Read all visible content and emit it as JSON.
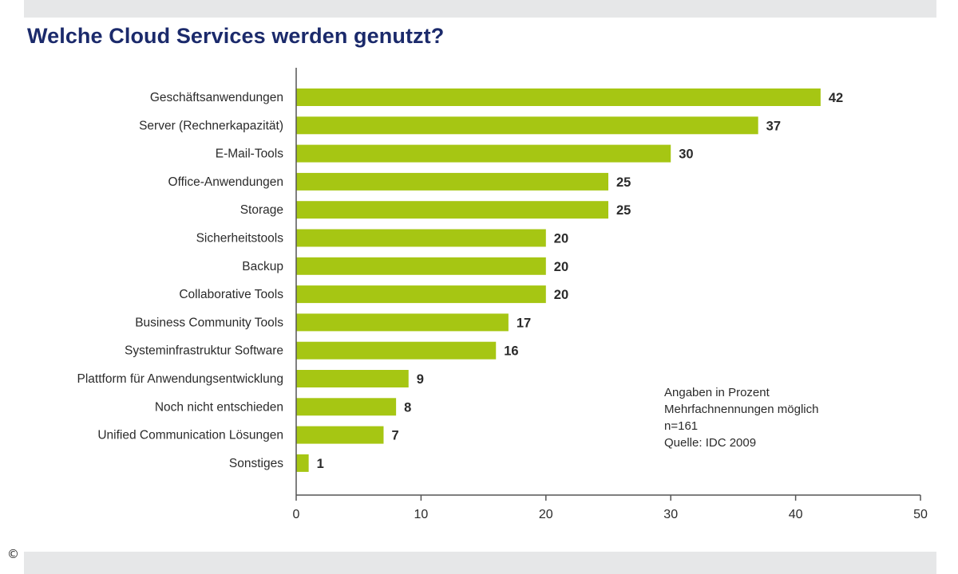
{
  "title": "Welche Cloud Services werden genutzt?",
  "copyright": "©",
  "notes": [
    "Angaben in Prozent",
    "Mehrfachnennungen möglich",
    "n=161",
    "Quelle: IDC 2009"
  ],
  "colors": {
    "bar": "#a6c613",
    "title": "#1b2a6b",
    "band": "#e6e7e8",
    "axis": "#555555"
  },
  "chart_data": {
    "type": "bar",
    "orientation": "horizontal",
    "title": "Welche Cloud Services werden genutzt?",
    "categories": [
      "Geschäftsanwendungen",
      "Server (Rechnerkapazität)",
      "E-Mail-Tools",
      "Office-Anwendungen",
      "Storage",
      "Sicherheitstools",
      "Backup",
      "Collaborative Tools",
      "Business Community Tools",
      "Systeminfrastruktur Software",
      "Plattform für Anwendungsentwicklung",
      "Noch nicht entschieden",
      "Unified Communication Lösungen",
      "Sonstiges"
    ],
    "values": [
      42,
      37,
      30,
      25,
      25,
      20,
      20,
      20,
      17,
      16,
      9,
      8,
      7,
      1
    ],
    "xlim": [
      0,
      50
    ],
    "xticks": [
      0,
      10,
      20,
      30,
      40,
      50
    ],
    "grid": false,
    "legend": "none"
  }
}
